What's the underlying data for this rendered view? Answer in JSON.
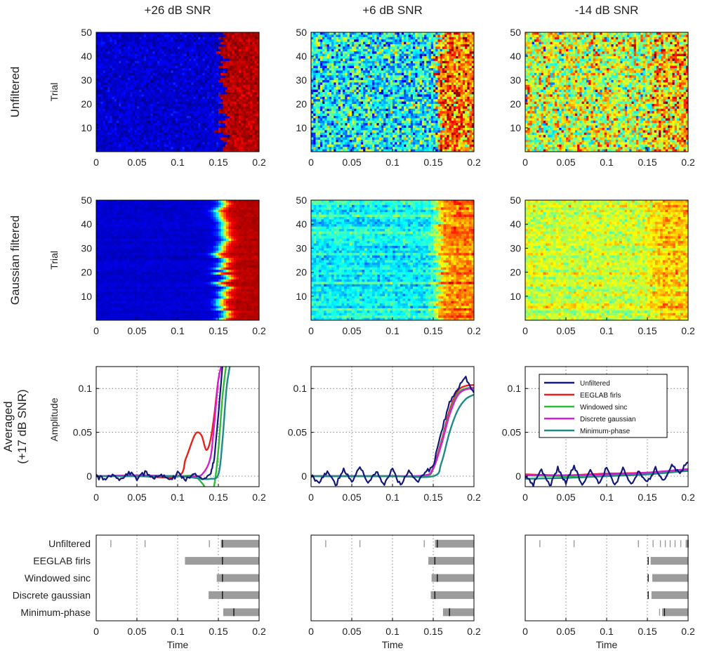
{
  "chart_data": {
    "type": "heatmap",
    "column_titles": [
      "+26 dB SNR",
      "+6 dB SNR",
      "-14 dB SNR"
    ],
    "row_labels": [
      "Unfiltered",
      "Gaussian filtered",
      "Averaged\n(+17 dB SNR)"
    ],
    "x_ticks": [
      "0",
      "0.05",
      "0.1",
      "0.15",
      "0.2"
    ],
    "x_ticks_values": [
      0,
      0.05,
      0.1,
      0.15,
      0.2
    ],
    "xlim": [
      0,
      0.2
    ],
    "xlabel": "Time",
    "heatmap_ylabel": "Trial",
    "heatmap_y_ticks": [
      "10",
      "20",
      "30",
      "40",
      "50"
    ],
    "heatmap_y_ticks_values": [
      10,
      20,
      30,
      40,
      50
    ],
    "heatmap_ylim": [
      0,
      50
    ],
    "heatmap_onset": 0.155,
    "heatmap_base_levels": [
      0.08,
      0.38,
      0.58
    ],
    "heatmap_step_levels": [
      0.95,
      0.75,
      0.68
    ],
    "heatmap_noise": [
      0.1,
      0.42,
      0.45
    ],
    "amp_ylabel": "Amplitude",
    "amp_y_ticks": [
      "0",
      "0.05",
      "0.1"
    ],
    "amp_y_ticks_values": [
      0,
      0.05,
      0.1
    ],
    "amp_ylim": [
      -0.012,
      0.125
    ],
    "colors": {
      "Unfiltered": "#13187a",
      "EEGLAB firls": "#e8201c",
      "Windowed sinc": "#2cbc33",
      "Discrete gaussian": "#d41ed4",
      "Minimum-phase": "#1c8c84",
      "bar": "#9c9c9c",
      "marker": "#111111"
    },
    "legend": [
      "Unfiltered",
      "EEGLAB firls",
      "Windowed sinc",
      "Discrete gaussian",
      "Minimum-phase"
    ],
    "averaged": [
      {
        "snr": "+26 dB SNR",
        "series": [
          {
            "name": "Unfiltered",
            "x": [
              0,
              0.01,
              0.02,
              0.03,
              0.04,
              0.05,
              0.06,
              0.07,
              0.08,
              0.09,
              0.1,
              0.11,
              0.12,
              0.13,
              0.14,
              0.145,
              0.15,
              0.155
            ],
            "y": [
              0,
              -0.004,
              0.003,
              -0.005,
              0.004,
              -0.002,
              0.005,
              -0.003,
              0.002,
              -0.004,
              0.003,
              -0.005,
              0.004,
              -0.004,
              0.002,
              0.02,
              0.07,
              0.125
            ]
          },
          {
            "name": "EEGLAB firls",
            "x": [
              0,
              0.05,
              0.1,
              0.11,
              0.12,
              0.125,
              0.13,
              0.135,
              0.14,
              0.145,
              0.15,
              0.155
            ],
            "y": [
              0,
              0,
              0,
              0.02,
              0.045,
              0.05,
              0.045,
              0.03,
              0.04,
              0.07,
              0.11,
              0.13
            ]
          },
          {
            "name": "Windowed sinc",
            "x": [
              0,
              0.05,
              0.1,
              0.12,
              0.13,
              0.135,
              0.14,
              0.145,
              0.15,
              0.155,
              0.16
            ],
            "y": [
              0,
              0,
              0,
              0,
              -0.008,
              -0.015,
              -0.02,
              -0.01,
              0.03,
              0.09,
              0.13
            ]
          },
          {
            "name": "Discrete gaussian",
            "x": [
              0,
              0.05,
              0.1,
              0.12,
              0.13,
              0.14,
              0.145,
              0.15,
              0.155
            ],
            "y": [
              0,
              0.001,
              0,
              0,
              0.002,
              0.02,
              0.06,
              0.11,
              0.13
            ]
          },
          {
            "name": "Minimum-phase",
            "x": [
              0,
              0.05,
              0.1,
              0.13,
              0.14,
              0.15,
              0.155,
              0.16,
              0.165
            ],
            "y": [
              0,
              0,
              0,
              -0.003,
              -0.003,
              0.002,
              0.04,
              0.1,
              0.13
            ]
          }
        ]
      },
      {
        "snr": "+6 dB SNR",
        "series": [
          {
            "name": "Unfiltered",
            "x": [
              0,
              0.01,
              0.02,
              0.03,
              0.04,
              0.05,
              0.06,
              0.07,
              0.08,
              0.09,
              0.1,
              0.11,
              0.12,
              0.13,
              0.14,
              0.15,
              0.16,
              0.17,
              0.18,
              0.19,
              0.2
            ],
            "y": [
              0,
              -0.008,
              0.006,
              -0.01,
              0.008,
              -0.006,
              0.01,
              -0.008,
              0.005,
              -0.009,
              0.007,
              -0.01,
              0.006,
              -0.007,
              0.003,
              0.012,
              0.05,
              0.085,
              0.1,
              0.112,
              0.095
            ]
          },
          {
            "name": "EEGLAB firls",
            "x": [
              0,
              0.05,
              0.1,
              0.14,
              0.15,
              0.16,
              0.17,
              0.18,
              0.19,
              0.2
            ],
            "y": [
              0,
              0,
              0,
              0,
              0.01,
              0.04,
              0.075,
              0.097,
              0.103,
              0.104
            ]
          },
          {
            "name": "Windowed sinc",
            "x": [
              0,
              0.05,
              0.1,
              0.14,
              0.15,
              0.16,
              0.17,
              0.18,
              0.19,
              0.2
            ],
            "y": [
              0,
              0,
              0,
              0,
              0.008,
              0.038,
              0.072,
              0.094,
              0.1,
              0.101
            ]
          },
          {
            "name": "Discrete gaussian",
            "x": [
              0,
              0.05,
              0.1,
              0.14,
              0.15,
              0.16,
              0.17,
              0.18,
              0.19,
              0.2
            ],
            "y": [
              0,
              0,
              0,
              0.001,
              0.009,
              0.036,
              0.07,
              0.092,
              0.099,
              0.1
            ]
          },
          {
            "name": "Minimum-phase",
            "x": [
              0,
              0.05,
              0.1,
              0.15,
              0.16,
              0.17,
              0.18,
              0.19,
              0.2
            ],
            "y": [
              0,
              0,
              0,
              0,
              0.015,
              0.05,
              0.075,
              0.088,
              0.093
            ]
          }
        ]
      },
      {
        "snr": "-14 dB SNR",
        "series": [
          {
            "name": "Unfiltered",
            "x": [
              0,
              0.01,
              0.02,
              0.03,
              0.04,
              0.05,
              0.06,
              0.07,
              0.08,
              0.09,
              0.1,
              0.11,
              0.12,
              0.13,
              0.14,
              0.15,
              0.16,
              0.17,
              0.18,
              0.19,
              0.2
            ],
            "y": [
              0,
              -0.01,
              0.008,
              -0.012,
              0.009,
              -0.008,
              0.012,
              -0.01,
              0.007,
              -0.009,
              0.01,
              -0.011,
              0.008,
              -0.01,
              0.006,
              -0.008,
              0.01,
              -0.006,
              0.012,
              0.004,
              0.016
            ]
          },
          {
            "name": "EEGLAB firls",
            "x": [
              0,
              0.05,
              0.1,
              0.15,
              0.2
            ],
            "y": [
              0.002,
              0.001,
              0.003,
              0.004,
              0.008
            ]
          },
          {
            "name": "Windowed sinc",
            "x": [
              0,
              0.05,
              0.1,
              0.15,
              0.2
            ],
            "y": [
              0.001,
              0,
              0.002,
              0.003,
              0.007
            ]
          },
          {
            "name": "Discrete gaussian",
            "x": [
              0,
              0.05,
              0.1,
              0.15,
              0.2
            ],
            "y": [
              0.001,
              0.001,
              0.002,
              0.004,
              0.008
            ]
          },
          {
            "name": "Minimum-phase",
            "x": [
              0,
              0.05,
              0.1,
              0.15,
              0.2
            ],
            "y": [
              -0.003,
              -0.002,
              0,
              0.002,
              0.006
            ]
          }
        ]
      }
    ],
    "onset_categories": [
      "Unfiltered",
      "EEGLAB firls",
      "Windowed sinc",
      "Discrete gaussian",
      "Minimum-phase"
    ],
    "onsets": [
      {
        "snr": "+26 dB SNR",
        "rows": [
          {
            "name": "Unfiltered",
            "range": [
              0.153,
              0.2
            ],
            "median": 0.155,
            "outliers": [
              0.018,
              0.06,
              0.139
            ]
          },
          {
            "name": "EEGLAB firls",
            "range": [
              0.109,
              0.2
            ],
            "median": 0.155,
            "outliers": []
          },
          {
            "name": "Windowed sinc",
            "range": [
              0.148,
              0.2
            ],
            "median": 0.155,
            "outliers": []
          },
          {
            "name": "Discrete gaussian",
            "range": [
              0.138,
              0.2
            ],
            "median": 0.155,
            "outliers": []
          },
          {
            "name": "Minimum-phase",
            "range": [
              0.156,
              0.2
            ],
            "median": 0.169,
            "outliers": []
          }
        ]
      },
      {
        "snr": "+6 dB SNR",
        "rows": [
          {
            "name": "Unfiltered",
            "range": [
              0.152,
              0.2
            ],
            "median": 0.155,
            "outliers": [
              0.018,
              0.06,
              0.139
            ]
          },
          {
            "name": "EEGLAB firls",
            "range": [
              0.144,
              0.2
            ],
            "median": 0.152,
            "outliers": []
          },
          {
            "name": "Windowed sinc",
            "range": [
              0.148,
              0.2
            ],
            "median": 0.155,
            "outliers": []
          },
          {
            "name": "Discrete gaussian",
            "range": [
              0.147,
              0.2
            ],
            "median": 0.152,
            "outliers": []
          },
          {
            "name": "Minimum-phase",
            "range": [
              0.162,
              0.2
            ],
            "median": 0.17,
            "outliers": []
          }
        ]
      },
      {
        "snr": "-14 dB SNR",
        "rows": [
          {
            "name": "Unfiltered",
            "range": [
              0.197,
              0.2
            ],
            "median": 0.2,
            "outliers": [
              0.018,
              0.06,
              0.139,
              0.157,
              0.166,
              0.172,
              0.178,
              0.184,
              0.191
            ]
          },
          {
            "name": "EEGLAB firls",
            "range": [
              0.154,
              0.2
            ],
            "median": 0.151,
            "outliers": []
          },
          {
            "name": "Windowed sinc",
            "range": [
              0.156,
              0.2
            ],
            "median": 0.151,
            "outliers": []
          },
          {
            "name": "Discrete gaussian",
            "range": [
              0.155,
              0.2
            ],
            "median": 0.151,
            "outliers": []
          },
          {
            "name": "Minimum-phase",
            "range": [
              0.168,
              0.2
            ],
            "median": 0.171,
            "outliers": [
              0.165
            ]
          }
        ]
      }
    ]
  }
}
